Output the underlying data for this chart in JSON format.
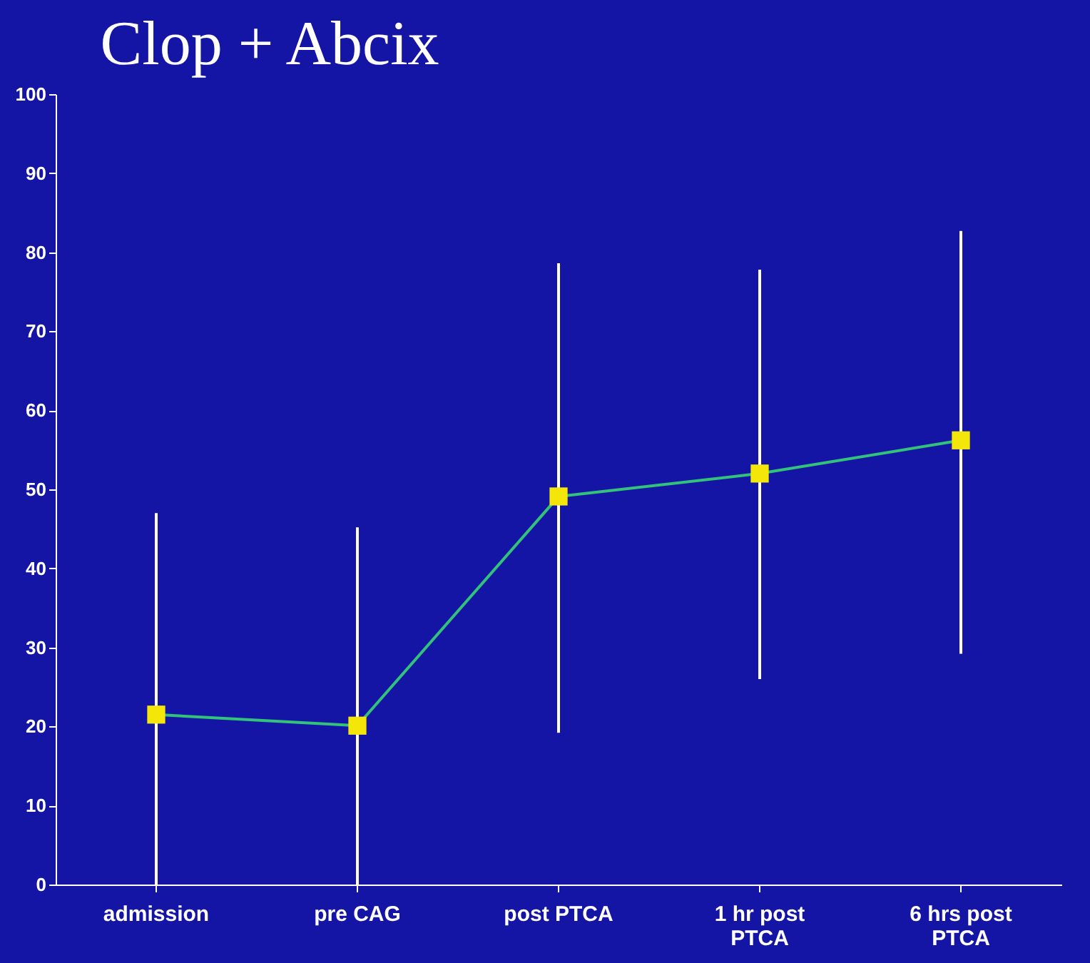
{
  "chart_data": {
    "type": "line",
    "title": "Clop + Abcix",
    "categories": [
      "admission",
      "pre CAG",
      "post PTCA",
      "1 hr post PTCA",
      "6 hrs post PTCA"
    ],
    "series": [
      {
        "color": "#33c27a",
        "colors": [
          "#f5e60a",
          "#f5e60a",
          "#f5e60a",
          "#f5e60a",
          "#f5e60a"
        ],
        "values": [
          21.5,
          20.1,
          49.1,
          52,
          56.2
        ],
        "errors": [
          [
            0,
            47
          ],
          [
            0,
            45.2
          ],
          [
            19.2,
            78.6
          ],
          [
            26,
            77.8
          ],
          [
            29.2,
            82.7
          ]
        ]
      }
    ],
    "ylim": [
      0,
      100
    ],
    "yticks": [
      0,
      10,
      20,
      30,
      40,
      50,
      60,
      70,
      80,
      90,
      100
    ],
    "marker": "square",
    "line_style": "solid"
  }
}
